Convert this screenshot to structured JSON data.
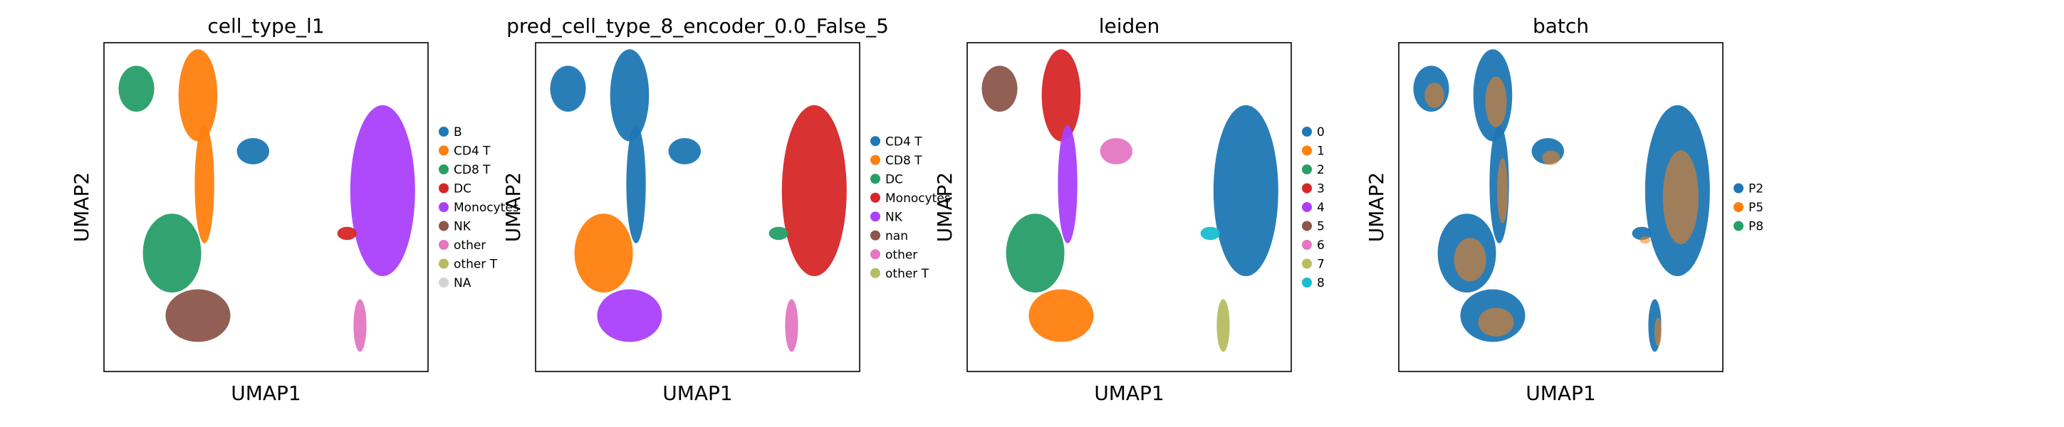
{
  "chart_data": [
    {
      "type": "scatter",
      "title": "cell_type_l1",
      "xlabel": "UMAP1",
      "ylabel": "UMAP2",
      "legend_position": "right",
      "legend": [
        {
          "label": "B",
          "color": "#1f77b4"
        },
        {
          "label": "CD4 T",
          "color": "#ff7f0e"
        },
        {
          "label": "CD8 T",
          "color": "#279e68"
        },
        {
          "label": "DC",
          "color": "#d62728"
        },
        {
          "label": "Monocytes",
          "color": "#aa40fc"
        },
        {
          "label": "NK",
          "color": "#8c564b"
        },
        {
          "label": "other",
          "color": "#e377c2"
        },
        {
          "label": "other T",
          "color": "#b5bd61"
        },
        {
          "label": "NA",
          "color": "#d3d3d3"
        }
      ]
    },
    {
      "type": "scatter",
      "title": "pred_cell_type_8_encoder_0.0_False_5",
      "xlabel": "UMAP1",
      "ylabel": "UMAP2",
      "legend_position": "right",
      "legend": [
        {
          "label": "CD4 T",
          "color": "#1f77b4"
        },
        {
          "label": "CD8 T",
          "color": "#ff7f0e"
        },
        {
          "label": "DC",
          "color": "#279e68"
        },
        {
          "label": "Monocytes",
          "color": "#d62728"
        },
        {
          "label": "NK",
          "color": "#aa40fc"
        },
        {
          "label": "nan",
          "color": "#8c564b"
        },
        {
          "label": "other",
          "color": "#e377c2"
        },
        {
          "label": "other T",
          "color": "#b5bd61"
        }
      ]
    },
    {
      "type": "scatter",
      "title": "leiden",
      "xlabel": "UMAP1",
      "ylabel": "UMAP2",
      "legend_position": "right",
      "legend": [
        {
          "label": "0",
          "color": "#1f77b4"
        },
        {
          "label": "1",
          "color": "#ff7f0e"
        },
        {
          "label": "2",
          "color": "#279e68"
        },
        {
          "label": "3",
          "color": "#d62728"
        },
        {
          "label": "4",
          "color": "#aa40fc"
        },
        {
          "label": "5",
          "color": "#8c564b"
        },
        {
          "label": "6",
          "color": "#e377c2"
        },
        {
          "label": "7",
          "color": "#b5bd61"
        },
        {
          "label": "8",
          "color": "#17becf"
        }
      ]
    },
    {
      "type": "scatter",
      "title": "batch",
      "xlabel": "UMAP1",
      "ylabel": "UMAP2",
      "legend_position": "right",
      "legend": [
        {
          "label": "P2",
          "color": "#1f77b4"
        },
        {
          "label": "P5",
          "color": "#ff7f0e"
        },
        {
          "label": "P8",
          "color": "#279e68"
        }
      ]
    }
  ]
}
